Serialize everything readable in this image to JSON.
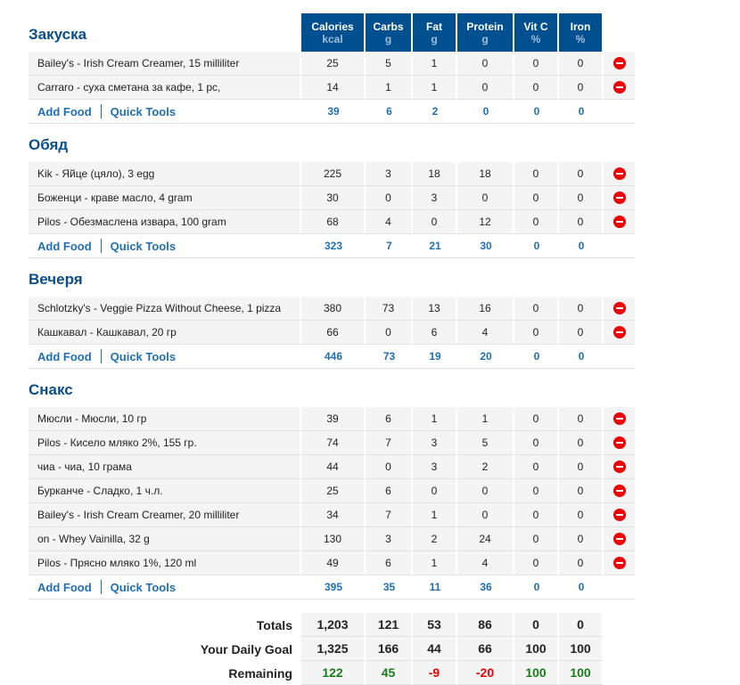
{
  "columns": [
    {
      "label": "Calories",
      "unit": "kcal"
    },
    {
      "label": "Carbs",
      "unit": "g"
    },
    {
      "label": "Fat",
      "unit": "g"
    },
    {
      "label": "Protein",
      "unit": "g"
    },
    {
      "label": "Vit C",
      "unit": "%"
    },
    {
      "label": "Iron",
      "unit": "%"
    }
  ],
  "add_food_label": "Add Food",
  "quick_tools_label": "Quick Tools",
  "delete_icon": "remove-circle-icon",
  "meals": [
    {
      "title": "Закуска",
      "foods": [
        {
          "name": "Bailey's - Irish Cream Creamer, 15 milliliter",
          "values": [
            "25",
            "5",
            "1",
            "0",
            "0",
            "0"
          ]
        },
        {
          "name": "Carraro - суха сметана за кафе, 1 pc,",
          "values": [
            "14",
            "1",
            "1",
            "0",
            "0",
            "0"
          ]
        }
      ],
      "totals": [
        "39",
        "6",
        "2",
        "0",
        "0",
        "0"
      ]
    },
    {
      "title": "Обяд",
      "foods": [
        {
          "name": "Kik - Яйце (цяло), 3 egg",
          "values": [
            "225",
            "3",
            "18",
            "18",
            "0",
            "0"
          ]
        },
        {
          "name": "Боженци - краве масло, 4 gram",
          "values": [
            "30",
            "0",
            "3",
            "0",
            "0",
            "0"
          ]
        },
        {
          "name": "Pilos - Обезмаслена извара, 100 gram",
          "values": [
            "68",
            "4",
            "0",
            "12",
            "0",
            "0"
          ]
        }
      ],
      "totals": [
        "323",
        "7",
        "21",
        "30",
        "0",
        "0"
      ]
    },
    {
      "title": "Вечеря",
      "foods": [
        {
          "name": "Schlotzky's - Veggie Pizza Without Cheese, 1 pizza",
          "values": [
            "380",
            "73",
            "13",
            "16",
            "0",
            "0"
          ]
        },
        {
          "name": "Кашкавал - Кашкавал, 20 гр",
          "values": [
            "66",
            "0",
            "6",
            "4",
            "0",
            "0"
          ]
        }
      ],
      "totals": [
        "446",
        "73",
        "19",
        "20",
        "0",
        "0"
      ]
    },
    {
      "title": "Снакс",
      "foods": [
        {
          "name": "Мюсли - Мюсли, 10 гр",
          "values": [
            "39",
            "6",
            "1",
            "1",
            "0",
            "0"
          ]
        },
        {
          "name": "Pilos - Кисело мляко 2%, 155 гр.",
          "values": [
            "74",
            "7",
            "3",
            "5",
            "0",
            "0"
          ]
        },
        {
          "name": "чиа - чиа, 10 грама",
          "values": [
            "44",
            "0",
            "3",
            "2",
            "0",
            "0"
          ]
        },
        {
          "name": "Бурканче - Сладко, 1 ч.л.",
          "values": [
            "25",
            "6",
            "0",
            "0",
            "0",
            "0"
          ]
        },
        {
          "name": "Bailey's - Irish Cream Creamer, 20 milliliter",
          "values": [
            "34",
            "7",
            "1",
            "0",
            "0",
            "0"
          ]
        },
        {
          "name": "on - Whey Vainilla, 32 g",
          "values": [
            "130",
            "3",
            "2",
            "24",
            "0",
            "0"
          ]
        },
        {
          "name": "Pilos - Прясно мляко 1%, 120 ml",
          "values": [
            "49",
            "6",
            "1",
            "4",
            "0",
            "0"
          ]
        }
      ],
      "totals": [
        "395",
        "35",
        "11",
        "36",
        "0",
        "0"
      ]
    }
  ],
  "summary": [
    {
      "label": "Totals",
      "values": [
        "1,203",
        "121",
        "53",
        "86",
        "0",
        "0"
      ]
    },
    {
      "label": "Your Daily Goal",
      "values": [
        "1,325",
        "166",
        "44",
        "66",
        "100",
        "100"
      ]
    },
    {
      "label": "Remaining",
      "values": [
        "122",
        "45",
        "-9",
        "-20",
        "100",
        "100"
      ],
      "status": [
        "pos",
        "pos",
        "neg",
        "neg",
        "pos",
        "pos"
      ]
    }
  ],
  "colors": {
    "header": "#00508f",
    "title": "#0a4f8c",
    "link": "#1f6fb5",
    "positive": "#1a7d1a",
    "negative": "#ee0000"
  }
}
